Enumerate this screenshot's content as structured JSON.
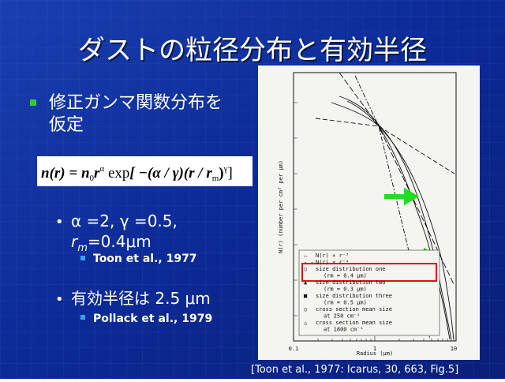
{
  "header": {
    "title": "ダストの粒径分布と有効半径"
  },
  "bullets": [
    {
      "text": [
        "修正ガンマ関数分布を",
        "仮定"
      ]
    },
    {
      "formula": [
        "n(r) = n",
        "0",
        "r",
        "α",
        " exp",
        "[ −(α / γ)(r / r",
        "m",
        ")",
        "γ",
        "]"
      ]
    },
    {
      "text": [
        "α =2,  γ =0.5,",
        "r",
        "m",
        "=0.4μm"
      ],
      "sub": "Toon et al., 1977"
    },
    {
      "text": [
        "有効半径は  2.5 μm"
      ],
      "sub": "Pollack et al., 1979"
    }
  ],
  "figure": {
    "xtick_labels": [
      "0.1",
      "1",
      "10"
    ],
    "xlabel": "Radius (μm)",
    "ylabel": "N(r) (number per cm³ per μm)",
    "legend": [
      "N(r) ∝ r⁻³",
      "N(r) ∝ r⁻⁴",
      "size distribution one",
      "(rm = 0.4 μm)",
      "size distribution two",
      "(rm = 0.3 μm)",
      "size distribution three",
      "(rm = 0.5 μm)",
      "cross section mean size",
      "at 250 cm⁻¹",
      "cross section mean size",
      "at 1800 cm⁻¹"
    ],
    "caption": "[Toon et al., 1977: Icarus, 30, 663, Fig.5]"
  }
}
